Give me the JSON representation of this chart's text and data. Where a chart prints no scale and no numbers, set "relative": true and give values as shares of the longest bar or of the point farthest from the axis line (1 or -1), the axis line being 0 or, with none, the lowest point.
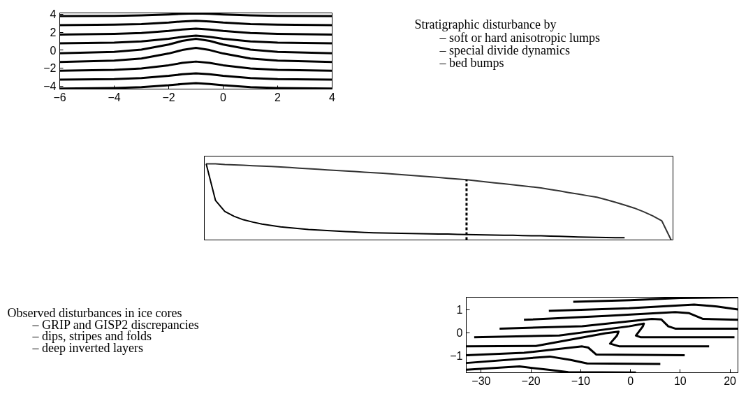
{
  "chart_data": [
    {
      "type": "line",
      "xlim": [
        -6,
        4
      ],
      "ylim": [
        -4.35,
        4.15
      ],
      "xticks": [
        -6,
        -4,
        -2,
        0,
        2,
        4
      ],
      "yticks": [
        -4,
        -2,
        0,
        2,
        4
      ],
      "grid": false,
      "marker": "none",
      "line_style": "solid",
      "x": [
        -6,
        -4,
        -3,
        -2,
        -1.5,
        -1,
        -0.5,
        0,
        1,
        2,
        4
      ],
      "series": [
        {
          "color": "#000000",
          "values": [
            3.79,
            3.82,
            3.87,
            3.98,
            4.05,
            4.1,
            4.05,
            3.98,
            3.87,
            3.82,
            3.79
          ]
        },
        {
          "color": "#000000",
          "values": [
            2.79,
            2.84,
            2.91,
            3.08,
            3.2,
            3.27,
            3.2,
            3.08,
            2.91,
            2.84,
            2.79
          ]
        },
        {
          "color": "#000000",
          "values": [
            1.74,
            1.81,
            1.91,
            2.14,
            2.3,
            2.4,
            2.3,
            2.14,
            1.91,
            1.81,
            1.74
          ]
        },
        {
          "color": "#000000",
          "values": [
            0.75,
            0.84,
            0.97,
            1.27,
            1.48,
            1.61,
            1.48,
            1.27,
            0.97,
            0.84,
            0.75
          ]
        },
        {
          "color": "#000000",
          "values": [
            -0.36,
            -0.2,
            0.05,
            0.62,
            1.03,
            1.27,
            1.03,
            0.62,
            0.05,
            -0.2,
            -0.36
          ]
        },
        {
          "color": "#000000",
          "values": [
            -1.33,
            -1.17,
            -0.94,
            -0.38,
            0.01,
            0.25,
            0.01,
            -0.38,
            -0.94,
            -1.17,
            -1.33
          ]
        },
        {
          "color": "#000000",
          "values": [
            -2.3,
            -2.2,
            -2.05,
            -1.69,
            -1.43,
            -1.28,
            -1.43,
            -1.69,
            -2.05,
            -2.2,
            -2.3
          ]
        },
        {
          "color": "#000000",
          "values": [
            -3.3,
            -3.23,
            -3.12,
            -2.87,
            -2.7,
            -2.59,
            -2.7,
            -2.87,
            -3.12,
            -3.23,
            -3.3
          ]
        },
        {
          "color": "#000000",
          "values": [
            -4.29,
            -4.23,
            -4.14,
            -3.93,
            -3.78,
            -3.69,
            -3.78,
            -3.93,
            -4.14,
            -4.23,
            -4.29
          ]
        }
      ]
    },
    {
      "type": "other",
      "title": "Stratigraphic disturbance by",
      "annotations": [
        "– soft or hard anisotropic lumps",
        "– special divide dynamics",
        "– bed bumps"
      ]
    },
    {
      "type": "line",
      "relative": true,
      "grid": false,
      "marker": "none",
      "line_style": "solid",
      "categories": [
        null,
        null,
        null,
        null,
        null,
        null,
        null,
        null,
        null,
        null,
        null,
        null,
        null,
        null,
        null,
        null,
        null,
        null,
        null,
        null,
        null,
        null,
        null,
        null,
        null,
        null,
        null,
        null,
        null,
        null,
        null,
        null,
        null,
        null,
        null,
        null,
        null,
        null,
        null,
        null,
        null,
        null,
        null,
        null,
        null,
        null,
        null,
        null,
        null,
        null,
        null
      ],
      "series": [
        {
          "color": "#333333",
          "values": [
            1.0,
            1.0,
            0.99,
            0.985,
            0.98,
            0.975,
            0.97,
            0.965,
            0.957,
            0.95,
            0.943,
            0.936,
            0.928,
            0.92,
            0.913,
            0.905,
            0.898,
            0.89,
            0.883,
            0.875,
            0.866,
            0.857,
            0.848,
            0.839,
            0.829,
            0.82,
            0.81,
            0.8,
            0.79,
            0.777,
            0.764,
            0.75,
            0.737,
            0.724,
            0.71,
            0.697,
            0.683,
            0.663,
            0.643,
            0.622,
            0.602,
            0.581,
            0.561,
            0.53,
            0.495,
            0.458,
            0.42,
            0.373,
            0.318,
            0.25,
            0.0
          ]
        },
        {
          "color": "#000000",
          "values": [
            1.0,
            0.52,
            0.375,
            0.31,
            0.265,
            0.235,
            0.209,
            0.19,
            0.172,
            0.16,
            0.148,
            0.137,
            0.13,
            0.123,
            0.117,
            0.111,
            0.105,
            0.099,
            0.094,
            0.091,
            0.089,
            0.087,
            0.085,
            0.083,
            0.081,
            0.079,
            0.077,
            0.074,
            0.071,
            0.069,
            0.067,
            0.065,
            0.063,
            0.061,
            0.058,
            0.056,
            0.054,
            0.05,
            0.047,
            0.043,
            0.04,
            0.037,
            0.034,
            0.032,
            0.03,
            0.029,
            null,
            null,
            null,
            null,
            null
          ]
        }
      ]
    },
    {
      "type": "other",
      "title": "Observed disturbances in ice cores",
      "annotations": [
        "– GRIP and GISP2 discrepancies",
        "– dips, stripes and folds",
        "– deep inverted layers"
      ]
    },
    {
      "type": "line",
      "xlim": [
        -33,
        21.6
      ],
      "ylim": [
        -1.74,
        1.53
      ],
      "xticks": [
        -30,
        -20,
        -10,
        0,
        10,
        20
      ],
      "yticks": [
        -1,
        0,
        1
      ],
      "grid": false,
      "marker": "none",
      "line_style": "solid",
      "series": [
        {
          "color": "#000000",
          "x": [
            -11.5,
            0,
            10,
            21.6
          ],
          "values": [
            1.33,
            1.4,
            1.5,
            1.53
          ]
        },
        {
          "color": "#000000",
          "x": [
            -16.4,
            -0.3,
            12.8,
            17.4,
            21.6
          ],
          "values": [
            0.94,
            1.05,
            1.21,
            1.13,
            1.0
          ]
        },
        {
          "color": "#000000",
          "x": [
            -21.4,
            -5,
            9,
            11.8,
            14.6,
            21.6
          ],
          "values": [
            0.55,
            0.72,
            0.89,
            0.84,
            0.59,
            0.55
          ]
        },
        {
          "color": "#000000",
          "x": [
            -26.3,
            -9.7,
            4.3,
            6.2,
            7.6,
            9.0,
            21.6
          ],
          "values": [
            0.17,
            0.27,
            0.59,
            0.57,
            0.27,
            0.17,
            0.17
          ]
        },
        {
          "color": "#000000",
          "x": [
            -31.4,
            -14.3,
            -0.3,
            2.7,
            2.5,
            1.1,
            2.0,
            20.9
          ],
          "values": [
            -0.2,
            -0.13,
            0.27,
            0.39,
            0.27,
            -0.13,
            -0.2,
            -0.2
          ]
        },
        {
          "color": "#000000",
          "x": [
            -33,
            -19,
            -5,
            -2.4,
            -2.7,
            -4.1,
            -2.2,
            15.8
          ],
          "values": [
            -0.6,
            -0.58,
            -0.03,
            0.04,
            -0.13,
            -0.48,
            -0.6,
            -0.6
          ]
        },
        {
          "color": "#000000",
          "x": [
            -33,
            -21.4,
            -9.7,
            -8.5,
            -6.9,
            10.9
          ],
          "values": [
            -0.98,
            -0.88,
            -0.6,
            -0.65,
            -0.95,
            -0.98
          ]
        },
        {
          "color": "#000000",
          "x": [
            -33,
            -16.2,
            -12,
            -8.7,
            6
          ],
          "values": [
            -1.32,
            -1.04,
            -1.19,
            -1.34,
            -1.36
          ]
        },
        {
          "color": "#000000",
          "x": [
            -33,
            -22.3,
            -16.2,
            -12.5,
            1.1
          ],
          "values": [
            -1.61,
            -1.47,
            -1.62,
            -1.72,
            -1.73
          ]
        }
      ]
    }
  ]
}
